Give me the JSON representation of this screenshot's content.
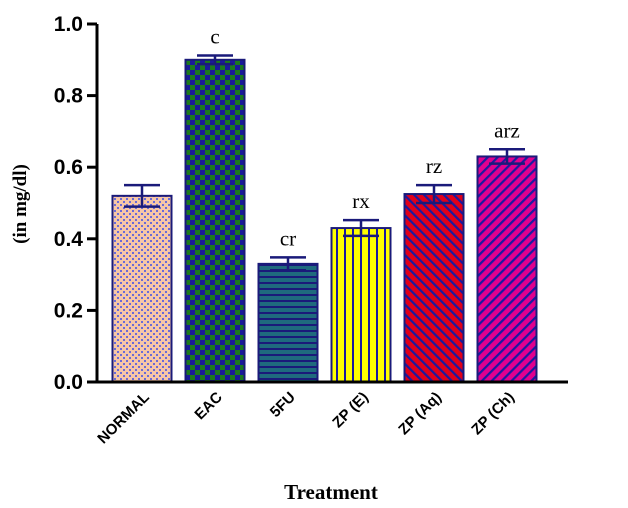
{
  "chart_data": {
    "type": "bar",
    "title": "",
    "xlabel": "Treatment",
    "ylabel": "(in mg/dl)",
    "ylim": [
      0,
      1.0
    ],
    "yticks": [
      "0.0",
      "0.2",
      "0.4",
      "0.6",
      "0.8",
      "1.0"
    ],
    "categories": [
      "NORMAL",
      "EAC",
      "5FU",
      "ZP (E)",
      "ZP (Aq)",
      "ZP (Ch)"
    ],
    "values": [
      0.52,
      0.9,
      0.33,
      0.43,
      0.525,
      0.63
    ],
    "errors": [
      0.03,
      0.012,
      0.018,
      0.022,
      0.025,
      0.02
    ],
    "annotations": [
      "",
      "c",
      "cr",
      "rx",
      "rz",
      "arz"
    ],
    "colors": {
      "axis": "#000000",
      "errorbar": "#1a1a7a",
      "bars": [
        {
          "fill": "#f7c6a6",
          "pattern": "#2b2bd0",
          "style": "dots"
        },
        {
          "fill": "#1d7a1d",
          "pattern": "#1a1a9a",
          "style": "checker"
        },
        {
          "fill": "#1f5e7a",
          "pattern": "#1a1a7a",
          "style": "hlines"
        },
        {
          "fill": "#ffff00",
          "pattern": "#1a1aa0",
          "style": "vlines"
        },
        {
          "fill": "#e0001a",
          "pattern": "#1a1aa0",
          "style": "diag"
        },
        {
          "fill": "#e0008f",
          "pattern": "#1a1aa0",
          "style": "diag-back"
        }
      ]
    }
  }
}
